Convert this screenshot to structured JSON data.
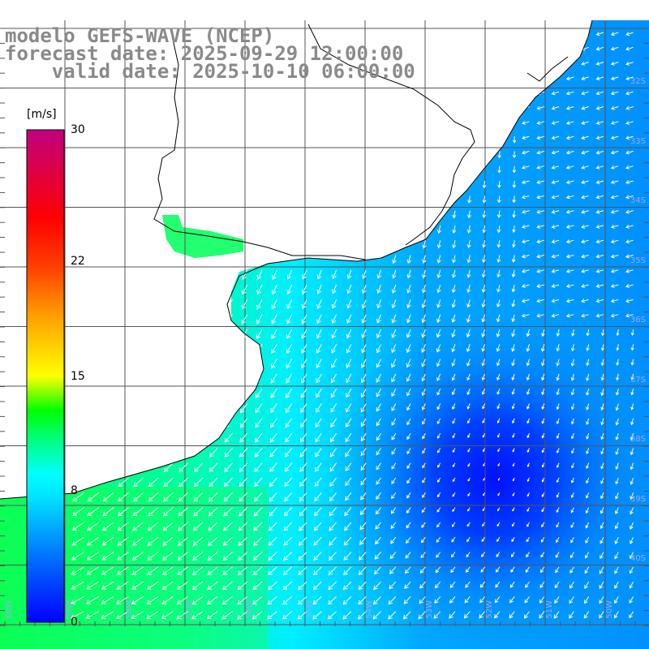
{
  "header": {
    "model": "modelo GEFS-WAVE (NCEP)",
    "forecast": "forecast date: 2025-09-29 12:00:00",
    "valid": "    valid date: 2025-10-10 06:00:00"
  },
  "colorbar": {
    "unit": "[m/s]",
    "ticks": [
      {
        "label": "30",
        "value": 30
      },
      {
        "label": "22",
        "value": 22
      },
      {
        "label": "15",
        "value": 15
      },
      {
        "label": "8",
        "value": 8
      },
      {
        "label": "0",
        "value": 0
      }
    ],
    "colors": [
      "#0000ff",
      "#0070ff",
      "#00d0ff",
      "#00ffff",
      "#00ff60",
      "#00e000",
      "#a0ff00",
      "#ffff00",
      "#ffa000",
      "#ff5000",
      "#ff0000",
      "#e00040",
      "#c00080"
    ]
  },
  "lat_labels": [
    "32S",
    "33S",
    "34S",
    "35S",
    "36S",
    "37S",
    "38S",
    "39S",
    "40S"
  ],
  "lon_labels": [
    "60W",
    "59W",
    "58W",
    "57W",
    "56W",
    "55W",
    "54W",
    "53W",
    "52W",
    "51W",
    "50W"
  ],
  "colors": {
    "land": "#ffffff",
    "grid": "#555555",
    "coast": "#000000",
    "arrow": "#ffffff",
    "title": "#8a8a8a"
  }
}
